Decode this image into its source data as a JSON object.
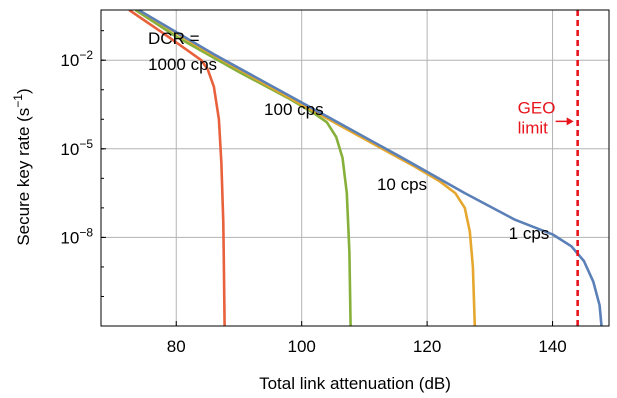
{
  "chart_data": {
    "type": "line",
    "title": "",
    "xlabel": "Total link attenuation (dB)",
    "ylabel_parts": {
      "base": "Secure key rate (s",
      "sup": "−1",
      "close": ")"
    },
    "xlim": [
      68,
      149
    ],
    "ylim_log10": [
      -11,
      -0.3
    ],
    "y_scale": "log",
    "grid": true,
    "x_ticks": [
      {
        "v": 80,
        "label": "80"
      },
      {
        "v": 100,
        "label": "100"
      },
      {
        "v": 120,
        "label": "120"
      },
      {
        "v": 140,
        "label": "140"
      }
    ],
    "y_ticks": [
      {
        "exp": -2,
        "base": "10",
        "sup": "−2"
      },
      {
        "exp": -5,
        "base": "10",
        "sup": "−5"
      },
      {
        "exp": -8,
        "base": "10",
        "sup": "−8"
      }
    ],
    "series": [
      {
        "label_lines": [
          "DCR =",
          "1000 cps"
        ],
        "color": "#e8613c",
        "points": [
          [
            72.5,
            -0.3
          ],
          [
            78,
            -1.1
          ],
          [
            82,
            -1.7
          ],
          [
            84,
            -2.0
          ],
          [
            85,
            -2.3
          ],
          [
            86,
            -2.9
          ],
          [
            86.8,
            -4.0
          ],
          [
            87.2,
            -5.5
          ],
          [
            87.5,
            -7.5
          ],
          [
            87.6,
            -9.0
          ],
          [
            87.7,
            -11
          ]
        ]
      },
      {
        "label_lines": [
          "100 cps"
        ],
        "color": "#86b03a",
        "points": [
          [
            73.5,
            -0.3
          ],
          [
            80,
            -1.2
          ],
          [
            90,
            -2.4
          ],
          [
            98,
            -3.3
          ],
          [
            102,
            -3.8
          ],
          [
            104,
            -4.1
          ],
          [
            105.5,
            -4.6
          ],
          [
            106.5,
            -5.3
          ],
          [
            107.2,
            -6.5
          ],
          [
            107.6,
            -8.5
          ],
          [
            107.8,
            -11
          ]
        ]
      },
      {
        "label_lines": [
          "10 cps"
        ],
        "color": "#e5a72d",
        "points": [
          [
            74,
            -0.3
          ],
          [
            84,
            -1.6
          ],
          [
            100,
            -3.5
          ],
          [
            112,
            -4.9
          ],
          [
            118,
            -5.6
          ],
          [
            122,
            -6.1
          ],
          [
            124.5,
            -6.5
          ],
          [
            126,
            -7.0
          ],
          [
            126.8,
            -7.8
          ],
          [
            127.3,
            -9.0
          ],
          [
            127.6,
            -11
          ]
        ]
      },
      {
        "label_lines": [
          "1 cps"
        ],
        "color": "#5b80b7",
        "points": [
          [
            74,
            -0.3
          ],
          [
            86,
            -1.8
          ],
          [
            104,
            -3.9
          ],
          [
            116,
            -5.3
          ],
          [
            126,
            -6.5
          ],
          [
            134,
            -7.4
          ],
          [
            140,
            -7.9
          ],
          [
            143,
            -8.3
          ],
          [
            145,
            -8.8
          ],
          [
            146.5,
            -9.5
          ],
          [
            147.5,
            -10.3
          ],
          [
            147.8,
            -11
          ]
        ]
      }
    ],
    "annotations": {
      "dcr_1000": {
        "lines": [
          "DCR =",
          "1000 cps"
        ],
        "x": 75.5,
        "y": -1.45
      },
      "dcr_100": {
        "lines": [
          "100 cps"
        ],
        "x": 94,
        "y": -3.85
      },
      "dcr_10": {
        "lines": [
          "10 cps"
        ],
        "x": 112,
        "y": -6.4
      },
      "dcr_1": {
        "lines": [
          "1 cps"
        ],
        "x": 133,
        "y": -8.05
      }
    },
    "geo_limit": {
      "x": 144,
      "label_lines": [
        "GEO",
        "limit"
      ],
      "color": "#e8141c"
    }
  }
}
